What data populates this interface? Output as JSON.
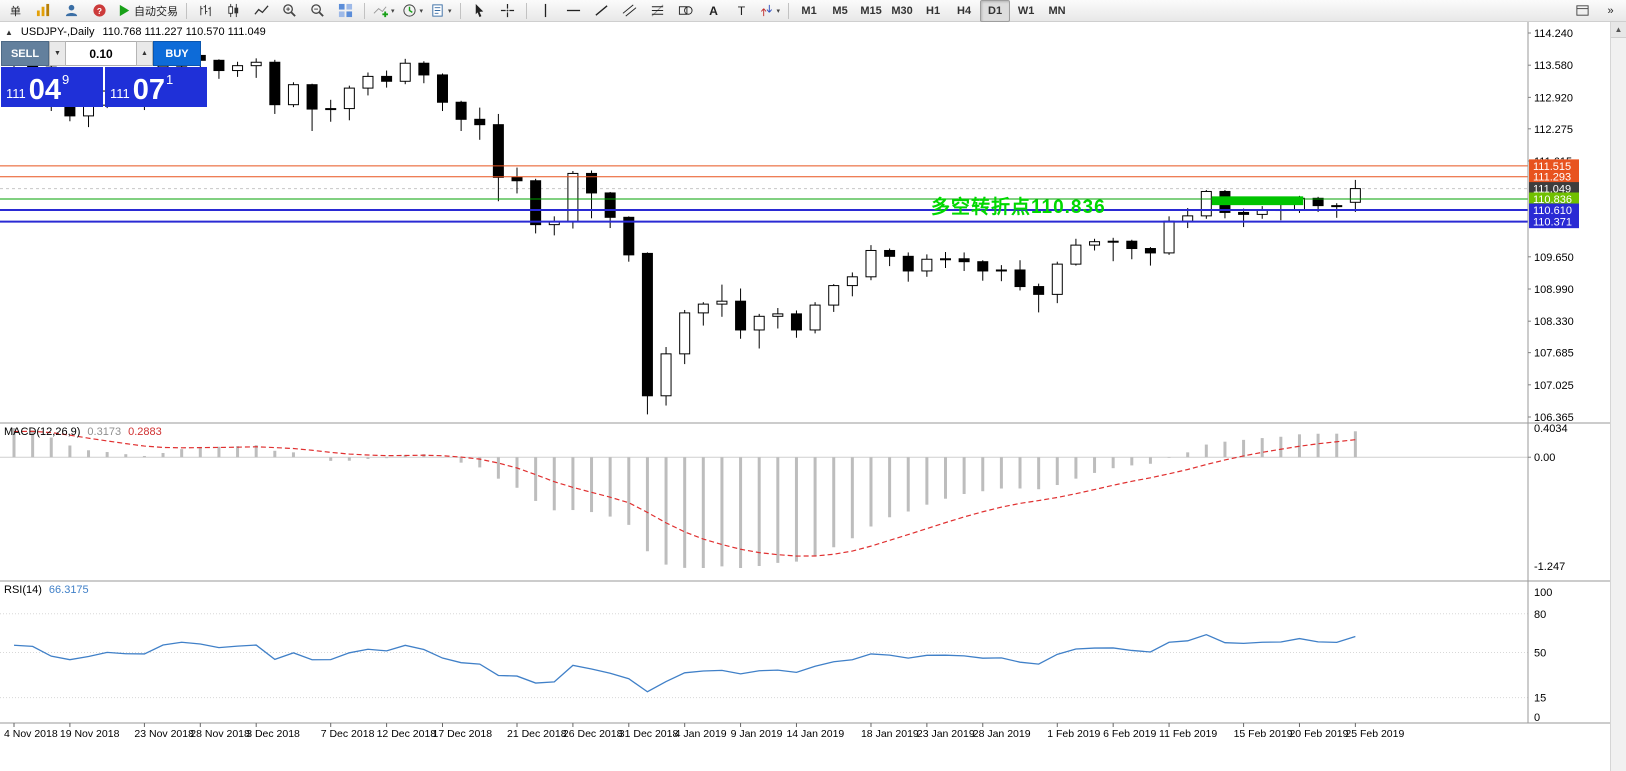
{
  "toolbar": {
    "active_timeframe": "D1",
    "dropdown_glyph": "▾",
    "overflow_glyph": "»",
    "scroll_up_glyph": "▲",
    "items": [
      {
        "kind": "label",
        "name": "new-order-button",
        "text": "单"
      },
      {
        "kind": "icon",
        "name": "chart-window-icon"
      },
      {
        "kind": "icon",
        "name": "profile-icon"
      },
      {
        "kind": "icon",
        "name": "help-icon"
      },
      {
        "kind": "button",
        "name": "autotrading-button",
        "icon": "autotrading-icon",
        "text": "自动交易"
      },
      {
        "kind": "sep"
      },
      {
        "kind": "icon",
        "name": "bar-chart-type-icon"
      },
      {
        "kind": "icon",
        "name": "candlestick-type-icon"
      },
      {
        "kind": "icon",
        "name": "line-chart-type-icon"
      },
      {
        "kind": "icon",
        "name": "zoom-in-icon"
      },
      {
        "kind": "icon",
        "name": "zoom-out-icon"
      },
      {
        "kind": "icon",
        "name": "tile-windows-icon"
      },
      {
        "kind": "sep"
      },
      {
        "kind": "icon",
        "name": "indicators-icon",
        "dropdown": true
      },
      {
        "kind": "icon",
        "name": "periods-icon",
        "dropdown": true
      },
      {
        "kind": "icon",
        "name": "templates-icon",
        "dropdown": true
      },
      {
        "kind": "sep"
      },
      {
        "kind": "icon",
        "name": "cursor-icon"
      },
      {
        "kind": "icon",
        "name": "crosshair-icon"
      },
      {
        "kind": "sep"
      },
      {
        "kind": "icon",
        "name": "vertical-line-icon"
      },
      {
        "kind": "icon",
        "name": "horizontal-line-icon"
      },
      {
        "kind": "icon",
        "name": "trendline-icon"
      },
      {
        "kind": "icon",
        "name": "equidistant-channel-icon"
      },
      {
        "kind": "icon",
        "name": "fibonacci-icon"
      },
      {
        "kind": "icon",
        "name": "shapes-icon"
      },
      {
        "kind": "icon",
        "name": "text-icon"
      },
      {
        "kind": "icon",
        "name": "text-label-icon"
      },
      {
        "kind": "icon",
        "name": "arrows-icon",
        "dropdown": true
      },
      {
        "kind": "sep"
      },
      {
        "kind": "tf",
        "text": "M1"
      },
      {
        "kind": "tf",
        "text": "M5"
      },
      {
        "kind": "tf",
        "text": "M15"
      },
      {
        "kind": "tf",
        "text": "M30"
      },
      {
        "kind": "tf",
        "text": "H1"
      },
      {
        "kind": "tf",
        "text": "H4"
      },
      {
        "kind": "tf",
        "text": "D1"
      },
      {
        "kind": "tf",
        "text": "W1"
      },
      {
        "kind": "tf",
        "text": "MN"
      },
      {
        "kind": "spacer"
      },
      {
        "kind": "icon",
        "name": "window-icon"
      },
      {
        "kind": "label",
        "name": "toolbar-overflow-button",
        "text": "»"
      }
    ]
  },
  "chart": {
    "title": {
      "collapse_glyph": "▲",
      "symbol": "USDJPY-,Daily",
      "ohlc": "110.768 111.227 110.570 111.049"
    }
  },
  "trade_panel": {
    "sell_label": "SELL",
    "buy_label": "BUY",
    "lot": "0.10",
    "lot_down_glyph": "▼",
    "lot_up_glyph": "▲",
    "sell_price": {
      "prefix": "111",
      "big": "04",
      "sup": "9"
    },
    "buy_price": {
      "prefix": "111",
      "big": "07",
      "sup": "1"
    },
    "colors": {
      "sell": "#63809d",
      "buy": "#0d6bd8",
      "panel": "#1f30d8"
    }
  },
  "chart_data": {
    "type": "candlestick+indicators",
    "symbol": "USDJPY",
    "period": "Daily",
    "candles": [
      [
        113.81,
        113.83,
        113.33,
        113.61
      ],
      [
        113.61,
        113.66,
        113.19,
        113.54
      ],
      [
        113.54,
        113.64,
        112.64,
        112.83
      ],
      [
        112.83,
        112.88,
        112.43,
        112.54
      ],
      [
        112.54,
        112.78,
        112.31,
        112.76
      ],
      [
        112.76,
        113.13,
        112.7,
        113.05
      ],
      [
        113.05,
        113.17,
        112.86,
        112.95
      ],
      [
        112.95,
        113.11,
        112.66,
        112.94
      ],
      [
        112.94,
        113.65,
        112.93,
        113.56
      ],
      [
        113.56,
        113.85,
        113.45,
        113.78
      ],
      [
        113.78,
        114.04,
        113.44,
        113.68
      ],
      [
        113.68,
        113.7,
        113.3,
        113.47
      ],
      [
        113.47,
        113.65,
        113.34,
        113.57
      ],
      [
        113.57,
        113.72,
        113.32,
        113.64
      ],
      [
        113.64,
        113.69,
        112.58,
        112.77
      ],
      [
        112.77,
        113.23,
        112.72,
        113.18
      ],
      [
        113.18,
        113.2,
        112.23,
        112.68
      ],
      [
        112.68,
        112.87,
        112.42,
        112.69
      ],
      [
        112.69,
        113.16,
        112.45,
        113.11
      ],
      [
        113.11,
        113.43,
        112.96,
        113.35
      ],
      [
        113.35,
        113.47,
        113.12,
        113.25
      ],
      [
        113.25,
        113.71,
        113.19,
        113.62
      ],
      [
        113.62,
        113.66,
        113.21,
        113.38
      ],
      [
        113.38,
        113.41,
        112.64,
        112.82
      ],
      [
        112.82,
        112.85,
        112.23,
        112.47
      ],
      [
        112.47,
        112.71,
        112.05,
        112.36
      ],
      [
        112.36,
        112.58,
        110.79,
        111.28
      ],
      [
        111.28,
        111.48,
        110.95,
        111.21
      ],
      [
        111.21,
        111.25,
        110.13,
        110.31
      ],
      [
        110.31,
        110.48,
        110.09,
        110.37
      ],
      [
        110.37,
        111.41,
        110.23,
        111.36
      ],
      [
        111.36,
        111.42,
        110.44,
        110.96
      ],
      [
        110.96,
        110.98,
        110.24,
        110.46
      ],
      [
        110.46,
        110.48,
        109.55,
        109.69
      ],
      [
        109.72,
        109.74,
        106.42,
        106.8
      ],
      [
        106.8,
        107.8,
        106.6,
        107.66
      ],
      [
        107.66,
        108.56,
        107.45,
        108.5
      ],
      [
        108.5,
        108.72,
        108.24,
        108.68
      ],
      [
        108.68,
        109.08,
        108.42,
        108.74
      ],
      [
        108.74,
        109.0,
        107.97,
        108.15
      ],
      [
        108.15,
        108.48,
        107.77,
        108.43
      ],
      [
        108.43,
        108.6,
        108.18,
        108.48
      ],
      [
        108.48,
        108.55,
        107.99,
        108.15
      ],
      [
        108.15,
        108.72,
        108.08,
        108.66
      ],
      [
        108.66,
        109.09,
        108.52,
        109.06
      ],
      [
        109.06,
        109.33,
        108.84,
        109.24
      ],
      [
        109.24,
        109.89,
        109.17,
        109.78
      ],
      [
        109.78,
        109.82,
        109.46,
        109.66
      ],
      [
        109.66,
        109.74,
        109.14,
        109.36
      ],
      [
        109.36,
        109.7,
        109.24,
        109.6
      ],
      [
        109.6,
        109.75,
        109.42,
        109.61
      ],
      [
        109.61,
        109.74,
        109.36,
        109.55
      ],
      [
        109.55,
        109.58,
        109.16,
        109.36
      ],
      [
        109.36,
        109.48,
        109.15,
        109.38
      ],
      [
        109.38,
        109.58,
        108.96,
        109.04
      ],
      [
        109.04,
        109.1,
        108.51,
        108.88
      ],
      [
        108.88,
        109.55,
        108.7,
        109.5
      ],
      [
        109.5,
        110.02,
        109.47,
        109.89
      ],
      [
        109.89,
        110.02,
        109.78,
        109.96
      ],
      [
        109.96,
        110.04,
        109.56,
        109.97
      ],
      [
        109.97,
        110.0,
        109.6,
        109.82
      ],
      [
        109.82,
        109.85,
        109.47,
        109.73
      ],
      [
        109.73,
        110.48,
        109.69,
        110.38
      ],
      [
        110.38,
        110.65,
        110.24,
        110.49
      ],
      [
        110.49,
        111.02,
        110.43,
        110.99
      ],
      [
        110.99,
        111.02,
        110.44,
        110.56
      ],
      [
        110.56,
        110.64,
        110.26,
        110.52
      ],
      [
        110.52,
        110.69,
        110.43,
        110.6
      ],
      [
        110.6,
        110.75,
        110.4,
        110.62
      ],
      [
        110.62,
        110.9,
        110.55,
        110.85
      ],
      [
        110.85,
        110.88,
        110.57,
        110.7
      ],
      [
        110.7,
        110.75,
        110.45,
        110.68
      ],
      [
        110.768,
        111.227,
        110.57,
        111.049
      ]
    ],
    "price_axis": {
      "max_price": 114.24,
      "min_price": 106.365,
      "labels": [
        "114.240",
        "113.580",
        "112.920",
        "112.275",
        "111.615",
        "109.650",
        "108.990",
        "108.330",
        "107.685",
        "107.025",
        "106.365"
      ],
      "markers": [
        {
          "text": "111.515",
          "price": 111.515,
          "bg": "#e8531f",
          "role": "resistance-line-label"
        },
        {
          "text": "111.293",
          "price": 111.293,
          "bg": "#e8531f",
          "role": "resistance-line-label"
        },
        {
          "text": "111.049",
          "price": 111.049,
          "bg": "#3d3d3d",
          "role": "bid-price-label"
        },
        {
          "text": "110.836",
          "price": 110.836,
          "bg": "#70c000",
          "role": "pivot-line-label"
        },
        {
          "text": "110.610",
          "price": 110.61,
          "bg": "#2a2ad4",
          "role": "support-line-label"
        },
        {
          "text": "110.371",
          "price": 110.371,
          "bg": "#2a2ad4",
          "role": "support-line-label"
        }
      ]
    },
    "hlines": [
      {
        "price": 111.049,
        "color": "#c8c8c8",
        "width": 1,
        "style": "dashed",
        "role": "bid-line"
      },
      {
        "price": 111.515,
        "color": "#e8531f",
        "width": 1,
        "style": "solid"
      },
      {
        "price": 111.293,
        "color": "#e8531f",
        "width": 1,
        "style": "solid"
      },
      {
        "price": 110.836,
        "color": "#00a000",
        "width": 1,
        "style": "solid"
      },
      {
        "price": 110.61,
        "color": "#2a2ad4",
        "width": 2,
        "style": "solid"
      },
      {
        "price": 110.371,
        "color": "#2a2ad4",
        "width": 2,
        "style": "solid"
      }
    ],
    "rectangle": {
      "index1": 64.3,
      "index2": 69.2,
      "price1": 110.71,
      "price2": 110.89,
      "color": "#00c400"
    },
    "annotation": {
      "text": "多空转折点110.836",
      "color": "#00d800",
      "index": 49.2,
      "price": 110.77,
      "font_size": 19
    },
    "macd": {
      "name": "MACD(12,26,9)",
      "value_main": "0.3173",
      "value_signal": "0.2883",
      "fast": 12,
      "slow": 26,
      "signal_period": 9,
      "axis_labels": {
        "max": "0.4034",
        "zero": "0.00",
        "min": "-1.247"
      },
      "colors": {
        "histogram": "#bdbdbd",
        "signal": "#e03030"
      }
    },
    "rsi": {
      "name": "RSI(14)",
      "value": "66.3175",
      "period": 14,
      "axis_labels": [
        100,
        80,
        50,
        15,
        0
      ],
      "levels": [
        80,
        50,
        15
      ],
      "color": "#4080c8"
    },
    "dates": [
      {
        "label": "4 Nov 2018",
        "i": 0
      },
      {
        "label": "19 Nov 2018",
        "i": 3
      },
      {
        "label": "23 Nov 2018",
        "i": 7
      },
      {
        "label": "28 Nov 2018",
        "i": 10
      },
      {
        "label": "3 Dec 2018",
        "i": 13
      },
      {
        "label": "7 Dec 2018",
        "i": 17
      },
      {
        "label": "12 Dec 2018",
        "i": 20
      },
      {
        "label": "17 Dec 2018",
        "i": 23
      },
      {
        "label": "21 Dec 2018",
        "i": 27
      },
      {
        "label": "26 Dec 2018",
        "i": 30
      },
      {
        "label": "31 Dec 2018",
        "i": 33
      },
      {
        "label": "4 Jan 2019",
        "i": 36
      },
      {
        "label": "9 Jan 2019",
        "i": 39
      },
      {
        "label": "14 Jan 2019",
        "i": 42
      },
      {
        "label": "18 Jan 2019",
        "i": 46
      },
      {
        "label": "23 Jan 2019",
        "i": 49
      },
      {
        "label": "28 Jan 2019",
        "i": 52
      },
      {
        "label": "1 Feb 2019",
        "i": 56
      },
      {
        "label": "6 Feb 2019",
        "i": 59
      },
      {
        "label": "11 Feb 2019",
        "i": 62
      },
      {
        "label": "15 Feb 2019",
        "i": 66
      },
      {
        "label": "20 Feb 2019",
        "i": 69
      },
      {
        "label": "25 Feb 2019",
        "i": 72
      }
    ]
  }
}
